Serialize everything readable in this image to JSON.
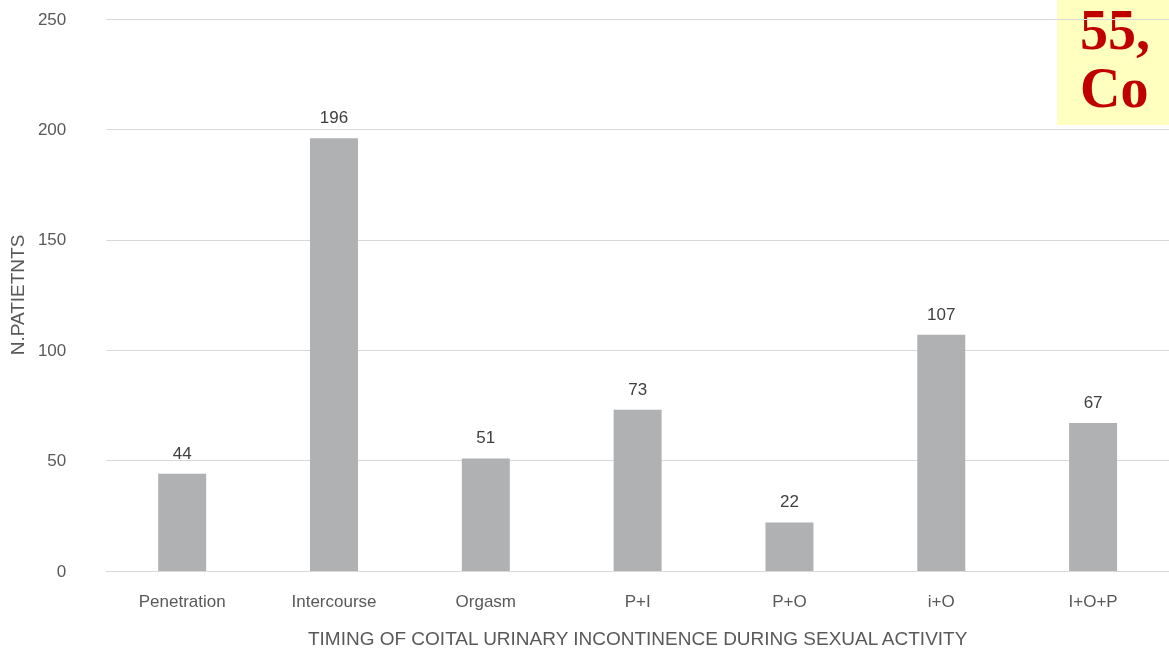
{
  "chart_data": {
    "type": "bar",
    "xlabel": "TIMING OF COITAL URINARY INCONTINENCE DURING SEXUAL ACTIVITY",
    "ylabel": "N.PATIETNTS",
    "categories": [
      "Penetration",
      "Intercourse",
      "Orgasm",
      "P+I",
      "P+O",
      "i+O",
      "I+O+P"
    ],
    "values": [
      44,
      196,
      51,
      73,
      22,
      107,
      67
    ],
    "color": "#b0b1b3",
    "ylim": [
      0,
      250
    ],
    "yticks": [
      0,
      50,
      100,
      150,
      200,
      250
    ],
    "grid": "y",
    "data_labels": true,
    "annotations": [
      "55,",
      "Co"
    ]
  }
}
